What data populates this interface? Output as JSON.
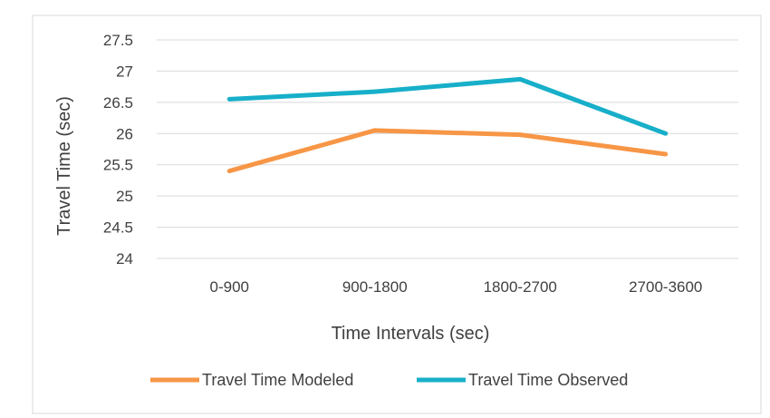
{
  "chart_data": {
    "type": "line",
    "categories": [
      "0-900",
      "900-1800",
      "1800-2700",
      "2700-3600"
    ],
    "series": [
      {
        "name": "Travel Time Modeled",
        "values": [
          25.4,
          26.05,
          25.98,
          25.67
        ],
        "color": "#F79646"
      },
      {
        "name": "Travel Time Observed",
        "values": [
          26.55,
          26.67,
          26.87,
          26.0
        ],
        "color": "#17AFC9"
      }
    ],
    "title": "",
    "xlabel": "Time Intervals (sec)",
    "ylabel": "Travel Time (sec)",
    "ylim": [
      24,
      27.5
    ],
    "yticks": [
      "24",
      "24.5",
      "25",
      "25.5",
      "26",
      "26.5",
      "27",
      "27.5"
    ],
    "grid": true,
    "legend_position": "bottom"
  }
}
